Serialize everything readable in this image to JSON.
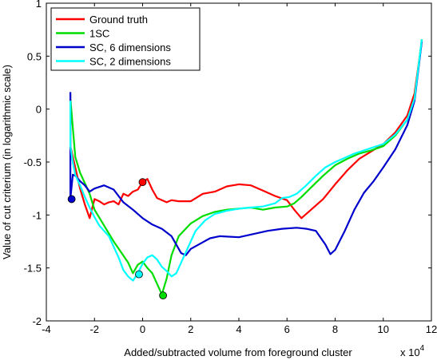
{
  "chart_data": {
    "type": "line",
    "title": "",
    "xlabel": "Added/subtracted volume from foreground cluster",
    "ylabel": "Value of cut criterium (in logarithmic scale)",
    "x_multiplier_label": "x 10",
    "x_multiplier_exp": "4",
    "xlim": [
      -4,
      12
    ],
    "ylim": [
      -2,
      1
    ],
    "x_ticks": [
      -4,
      -2,
      0,
      2,
      4,
      6,
      8,
      10,
      12
    ],
    "x_tick_labels": [
      "-4",
      "-2",
      "0",
      "2",
      "4",
      "6",
      "8",
      "10",
      "12"
    ],
    "y_ticks": [
      -2,
      -1.5,
      -1,
      -0.5,
      0,
      0.5,
      1
    ],
    "y_tick_labels": [
      "-2",
      "-1.5",
      "-1",
      "-0.5",
      "0",
      "0.5",
      "1"
    ],
    "grid": false,
    "legend_position": "top-left",
    "series": [
      {
        "name": "Ground truth",
        "color": "#ff0000",
        "x": [
          -3.0,
          -3.0,
          -2.8,
          -2.6,
          -2.4,
          -2.2,
          -2.0,
          -1.8,
          -1.6,
          -1.4,
          -1.2,
          -1.0,
          -0.8,
          -0.6,
          -0.4,
          -0.2,
          0.0,
          0.2,
          0.4,
          0.6,
          0.8,
          1.0,
          1.2,
          1.5,
          2.0,
          2.5,
          3.0,
          3.5,
          4.0,
          4.5,
          5.0,
          5.5,
          6.0,
          6.3,
          6.6,
          7.0,
          7.5,
          8.0,
          8.5,
          9.0,
          9.5,
          10.0,
          10.5,
          11.0,
          11.3,
          11.6
        ],
        "y": [
          0.14,
          -0.35,
          -0.55,
          -0.75,
          -0.9,
          -1.03,
          -0.85,
          -0.87,
          -0.9,
          -0.88,
          -0.87,
          -0.9,
          -0.8,
          -0.82,
          -0.78,
          -0.76,
          -0.69,
          -0.66,
          -0.76,
          -0.84,
          -0.86,
          -0.88,
          -0.86,
          -0.87,
          -0.87,
          -0.8,
          -0.78,
          -0.73,
          -0.71,
          -0.72,
          -0.77,
          -0.82,
          -0.86,
          -0.95,
          -1.03,
          -0.95,
          -0.85,
          -0.71,
          -0.58,
          -0.47,
          -0.4,
          -0.33,
          -0.22,
          -0.06,
          0.15,
          0.64
        ]
      },
      {
        "name": "1SC",
        "color": "#00dd00",
        "x": [
          -3.0,
          -2.8,
          -2.6,
          -2.4,
          -2.2,
          -2.0,
          -1.6,
          -1.2,
          -0.9,
          -0.6,
          -0.4,
          -0.2,
          0.0,
          0.2,
          0.4,
          0.6,
          0.8,
          1.0,
          1.2,
          1.5,
          2.0,
          2.5,
          3.0,
          3.5,
          4.0,
          4.5,
          5.0,
          5.5,
          6.0,
          6.3,
          6.6,
          7.0,
          7.5,
          8.0,
          8.5,
          9.0,
          9.5,
          10.0,
          10.5,
          11.0,
          11.3,
          11.6
        ],
        "y": [
          0.1,
          -0.45,
          -0.6,
          -0.7,
          -0.8,
          -0.95,
          -1.1,
          -1.25,
          -1.35,
          -1.45,
          -1.55,
          -1.47,
          -1.44,
          -1.5,
          -1.55,
          -1.65,
          -1.75,
          -1.6,
          -1.38,
          -1.2,
          -1.08,
          -1.01,
          -0.97,
          -0.95,
          -0.94,
          -0.93,
          -0.95,
          -0.93,
          -0.92,
          -0.89,
          -0.83,
          -0.74,
          -0.63,
          -0.53,
          -0.47,
          -0.42,
          -0.39,
          -0.35,
          -0.25,
          -0.1,
          0.1,
          0.66
        ]
      },
      {
        "name": "SC, 6 dimensions",
        "color": "#0000cc",
        "x": [
          -3.0,
          -3.0,
          -2.9,
          -2.8,
          -2.6,
          -2.4,
          -2.2,
          -2.0,
          -1.6,
          -1.2,
          -0.8,
          -0.4,
          0.0,
          0.4,
          0.8,
          1.2,
          1.6,
          1.8,
          2.0,
          2.4,
          2.8,
          3.2,
          4.0,
          4.6,
          5.2,
          5.8,
          6.4,
          6.8,
          7.2,
          7.6,
          7.8,
          8.0,
          8.4,
          8.8,
          9.2,
          9.6,
          10.0,
          10.5,
          11.0,
          11.3,
          11.6
        ],
        "y": [
          0.16,
          -0.85,
          -0.62,
          -0.63,
          -0.68,
          -0.72,
          -0.78,
          -0.75,
          -0.72,
          -0.76,
          -0.88,
          -0.95,
          -1.03,
          -1.09,
          -1.13,
          -1.2,
          -1.36,
          -1.38,
          -1.32,
          -1.27,
          -1.22,
          -1.2,
          -1.21,
          -1.18,
          -1.15,
          -1.13,
          -1.12,
          -1.13,
          -1.15,
          -1.28,
          -1.37,
          -1.33,
          -1.15,
          -0.95,
          -0.79,
          -0.68,
          -0.55,
          -0.38,
          -0.15,
          0.08,
          0.64
        ]
      },
      {
        "name": "SC, 2 dimensions",
        "color": "#00ffff",
        "x": [
          -3.0,
          -3.0,
          -2.9,
          -2.8,
          -2.6,
          -2.4,
          -2.2,
          -2.0,
          -1.8,
          -1.6,
          -1.4,
          -1.2,
          -1.0,
          -0.8,
          -0.6,
          -0.4,
          -0.2,
          0.0,
          0.2,
          0.4,
          0.6,
          0.8,
          1.0,
          1.2,
          1.4,
          1.8,
          2.2,
          2.6,
          3.0,
          3.5,
          4.0,
          4.5,
          5.0,
          5.5,
          5.8,
          6.1,
          6.4,
          6.8,
          7.2,
          7.6,
          8.0,
          8.4,
          8.8,
          9.2,
          9.6,
          10.0,
          10.5,
          11.0,
          11.3,
          11.6
        ],
        "y": [
          0.08,
          -0.35,
          -0.5,
          -0.62,
          -0.72,
          -0.83,
          -0.93,
          -1.02,
          -1.1,
          -1.15,
          -1.2,
          -1.3,
          -1.4,
          -1.52,
          -1.58,
          -1.62,
          -1.55,
          -1.46,
          -1.4,
          -1.38,
          -1.42,
          -1.49,
          -1.53,
          -1.58,
          -1.55,
          -1.35,
          -1.15,
          -1.05,
          -0.99,
          -0.96,
          -0.94,
          -0.93,
          -0.92,
          -0.89,
          -0.84,
          -0.83,
          -0.8,
          -0.72,
          -0.63,
          -0.55,
          -0.5,
          -0.46,
          -0.42,
          -0.39,
          -0.36,
          -0.33,
          -0.24,
          -0.1,
          0.1,
          0.66
        ]
      }
    ],
    "markers": [
      {
        "series": "Ground truth",
        "x": 0.0,
        "y": -0.69,
        "color": "#ff0000"
      },
      {
        "series": "1SC",
        "x": 0.85,
        "y": -1.76,
        "color": "#00dd00"
      },
      {
        "series": "SC, 6 dimensions",
        "x": -2.95,
        "y": -0.85,
        "color": "#0000cc"
      },
      {
        "series": "SC, 2 dimensions",
        "x": -0.15,
        "y": -1.56,
        "color": "#00ffff"
      }
    ]
  }
}
